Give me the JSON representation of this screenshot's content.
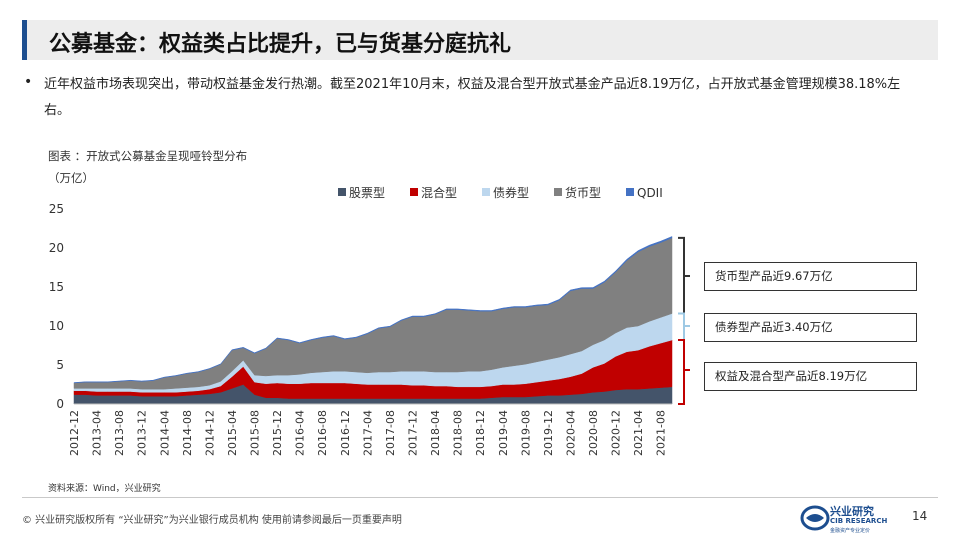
{
  "slide": {
    "title": "公募基金：权益类占比提升，已与货基分庭抗礼",
    "bullet_marker": "•",
    "bullet_text": "近年权益市场表现突出，带动权益基金发行热潮。截至2021年10月末，权益及混合型开放式基金产品近8.19万亿，占开放式基金管理规模38.18%左右。",
    "figure_caption": "图表 ：开放式公募基金呈现哑铃型分布",
    "unit_label": "（万亿）",
    "source": "资料来源：Wind，兴业研究",
    "footer_text": "©  兴业研究版权所有   “兴业研究”为兴业银行成员机构   使用前请参阅最后一页重要声明",
    "logo_cn": "兴业研究",
    "logo_en": "CIB RESEARCH",
    "logo_sub": "金融资产专业定价",
    "page_number": "14"
  },
  "annotations": [
    {
      "label": "货币型产品近9.67万亿",
      "color": "#333333"
    },
    {
      "label": "债券型产品近3.40万亿",
      "color": "#9ec9e4"
    },
    {
      "label": "权益及混合型产品近8.19万亿",
      "color": "#c00000"
    }
  ],
  "chart_data": {
    "type": "area",
    "stacked": true,
    "title": "",
    "ylabel": "（万亿）",
    "ylim": [
      0,
      25
    ],
    "yticks": [
      0,
      5,
      10,
      15,
      20,
      25
    ],
    "xtick_labels": [
      "2012-12",
      "2013-04",
      "2013-08",
      "2013-12",
      "2014-04",
      "2014-08",
      "2014-12",
      "2015-04",
      "2015-08",
      "2015-12",
      "2016-04",
      "2016-08",
      "2016-12",
      "2017-04",
      "2017-08",
      "2017-12",
      "2018-04",
      "2018-08",
      "2018-12",
      "2019-04",
      "2019-08",
      "2019-12",
      "2020-04",
      "2020-08",
      "2020-12",
      "2021-04",
      "2021-08"
    ],
    "legend_position": "top",
    "x": [
      "2012-12",
      "2013-02",
      "2013-04",
      "2013-06",
      "2013-08",
      "2013-10",
      "2013-12",
      "2014-02",
      "2014-04",
      "2014-06",
      "2014-08",
      "2014-10",
      "2014-12",
      "2015-02",
      "2015-04",
      "2015-06",
      "2015-08",
      "2015-10",
      "2015-12",
      "2016-02",
      "2016-04",
      "2016-06",
      "2016-08",
      "2016-10",
      "2016-12",
      "2017-02",
      "2017-04",
      "2017-06",
      "2017-08",
      "2017-10",
      "2017-12",
      "2018-02",
      "2018-04",
      "2018-06",
      "2018-08",
      "2018-10",
      "2018-12",
      "2019-02",
      "2019-04",
      "2019-06",
      "2019-08",
      "2019-10",
      "2019-12",
      "2020-02",
      "2020-04",
      "2020-06",
      "2020-08",
      "2020-10",
      "2020-12",
      "2021-02",
      "2021-04",
      "2021-06",
      "2021-08",
      "2021-10"
    ],
    "series": [
      {
        "name": "股票型",
        "color": "#44546a",
        "values": [
          1.2,
          1.2,
          1.1,
          1.1,
          1.1,
          1.1,
          1.0,
          1.0,
          1.0,
          1.0,
          1.1,
          1.2,
          1.3,
          1.5,
          2.0,
          2.5,
          1.2,
          0.8,
          0.8,
          0.7,
          0.7,
          0.7,
          0.7,
          0.7,
          0.7,
          0.7,
          0.7,
          0.7,
          0.7,
          0.7,
          0.7,
          0.7,
          0.7,
          0.7,
          0.7,
          0.7,
          0.7,
          0.8,
          0.9,
          0.9,
          0.9,
          1.0,
          1.1,
          1.1,
          1.2,
          1.3,
          1.5,
          1.6,
          1.8,
          1.9,
          1.9,
          2.0,
          2.1,
          2.2
        ]
      },
      {
        "name": "混合型",
        "color": "#c00000",
        "values": [
          0.5,
          0.5,
          0.5,
          0.5,
          0.5,
          0.5,
          0.5,
          0.5,
          0.5,
          0.5,
          0.5,
          0.5,
          0.6,
          0.8,
          1.5,
          2.3,
          1.6,
          1.8,
          1.9,
          1.9,
          1.9,
          2.0,
          2.0,
          2.0,
          2.0,
          1.9,
          1.8,
          1.8,
          1.8,
          1.8,
          1.7,
          1.7,
          1.6,
          1.6,
          1.5,
          1.5,
          1.5,
          1.5,
          1.6,
          1.6,
          1.7,
          1.8,
          1.9,
          2.1,
          2.3,
          2.6,
          3.2,
          3.6,
          4.3,
          4.8,
          5.0,
          5.4,
          5.7,
          6.0
        ]
      },
      {
        "name": "债券型",
        "color": "#bdd7ee",
        "values": [
          0.3,
          0.3,
          0.4,
          0.4,
          0.4,
          0.4,
          0.4,
          0.4,
          0.4,
          0.5,
          0.5,
          0.5,
          0.5,
          0.6,
          0.7,
          0.8,
          0.9,
          1.0,
          1.0,
          1.1,
          1.2,
          1.3,
          1.4,
          1.5,
          1.5,
          1.5,
          1.5,
          1.6,
          1.6,
          1.7,
          1.8,
          1.8,
          1.8,
          1.8,
          1.9,
          2.0,
          2.0,
          2.1,
          2.2,
          2.4,
          2.5,
          2.6,
          2.7,
          2.8,
          2.9,
          2.9,
          2.9,
          3.0,
          3.0,
          3.1,
          3.1,
          3.2,
          3.3,
          3.4
        ]
      },
      {
        "name": "货币型",
        "color": "#808080",
        "values": [
          0.7,
          0.8,
          0.8,
          0.8,
          0.9,
          1.0,
          1.0,
          1.1,
          1.5,
          1.6,
          1.8,
          1.9,
          2.1,
          2.2,
          2.7,
          1.6,
          2.8,
          3.5,
          4.7,
          4.5,
          4.0,
          4.2,
          4.4,
          4.5,
          4.1,
          4.4,
          5.0,
          5.6,
          5.8,
          6.5,
          7.0,
          7.0,
          7.4,
          8.0,
          8.0,
          7.8,
          7.7,
          7.5,
          7.5,
          7.5,
          7.3,
          7.2,
          7.0,
          7.3,
          8.1,
          8.0,
          7.2,
          7.4,
          7.8,
          8.6,
          9.5,
          9.6,
          9.6,
          9.7
        ]
      },
      {
        "name": "QDII",
        "color": "#4472c4",
        "values": [
          0.05,
          0.05,
          0.05,
          0.05,
          0.05,
          0.05,
          0.05,
          0.05,
          0.05,
          0.05,
          0.05,
          0.05,
          0.05,
          0.05,
          0.06,
          0.07,
          0.07,
          0.07,
          0.07,
          0.07,
          0.07,
          0.07,
          0.08,
          0.08,
          0.08,
          0.08,
          0.08,
          0.08,
          0.08,
          0.08,
          0.08,
          0.08,
          0.08,
          0.09,
          0.09,
          0.09,
          0.09,
          0.09,
          0.1,
          0.1,
          0.1,
          0.1,
          0.11,
          0.11,
          0.12,
          0.12,
          0.13,
          0.14,
          0.15,
          0.16,
          0.17,
          0.17,
          0.18,
          0.18
        ]
      }
    ]
  }
}
